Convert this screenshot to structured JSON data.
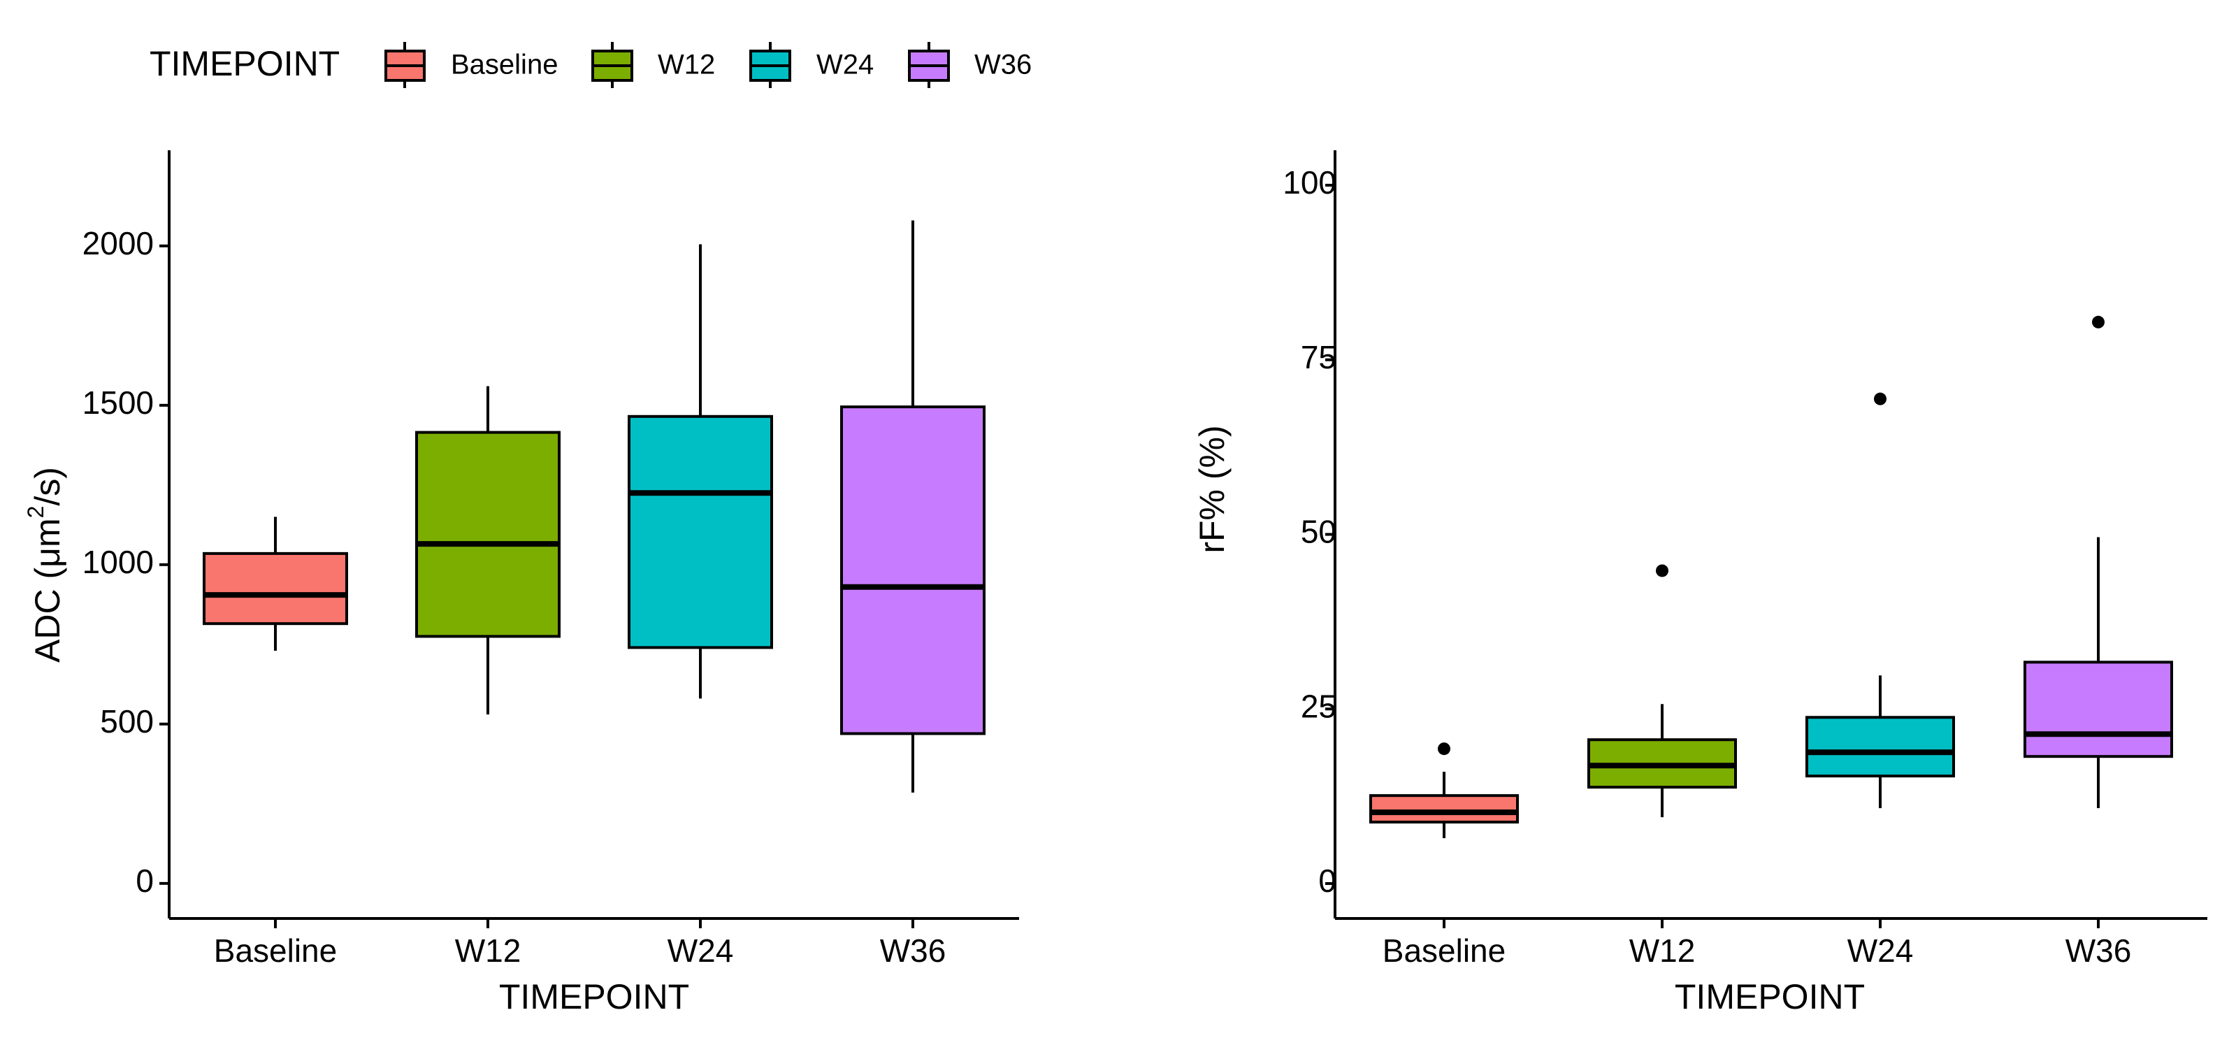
{
  "legend": {
    "title": "TIMEPOINT",
    "entries": [
      "Baseline",
      "W12",
      "W24",
      "W36"
    ]
  },
  "colors": {
    "Baseline": "#F8766D",
    "W12": "#7CAE00",
    "W24": "#00BFC4",
    "W36": "#C77CFF",
    "line": "#000000"
  },
  "chart_data": [
    {
      "type": "box",
      "title": "",
      "xlabel": "TIMEPOINT",
      "ylabel_main": "ADC (μm",
      "ylabel_sup": "2",
      "ylabel_tail": "/s)",
      "ylim": [
        -110,
        2300
      ],
      "yticks": [
        0,
        500,
        1000,
        1500,
        2000
      ],
      "ytick_labels": [
        "0",
        "500",
        "1000",
        "1500",
        "2000"
      ],
      "categories": [
        "Baseline",
        "W12",
        "W24",
        "W36"
      ],
      "boxes": [
        {
          "category": "Baseline",
          "lower_whisker": 730,
          "q1": 815,
          "median": 905,
          "q3": 1035,
          "upper_whisker": 1150,
          "outliers": []
        },
        {
          "category": "W12",
          "lower_whisker": 530,
          "q1": 775,
          "median": 1065,
          "q3": 1415,
          "upper_whisker": 1560,
          "outliers": []
        },
        {
          "category": "W24",
          "lower_whisker": 580,
          "q1": 740,
          "median": 1225,
          "q3": 1465,
          "upper_whisker": 2005,
          "outliers": []
        },
        {
          "category": "W36",
          "lower_whisker": 285,
          "q1": 470,
          "median": 930,
          "q3": 1495,
          "upper_whisker": 2080,
          "outliers": []
        }
      ]
    },
    {
      "type": "box",
      "title": "",
      "xlabel": "TIMEPOINT",
      "ylabel": "rF% (%)",
      "ylim": [
        -5,
        105
      ],
      "yticks": [
        0,
        25,
        50,
        75,
        100
      ],
      "ytick_labels": [
        "0",
        "25",
        "50",
        "75",
        "100"
      ],
      "categories": [
        "Baseline",
        "W12",
        "W24",
        "W36"
      ],
      "boxes": [
        {
          "category": "Baseline",
          "lower_whisker": 6.5,
          "q1": 8.8,
          "median": 10.2,
          "q3": 12.6,
          "upper_whisker": 16,
          "outliers": [
            19.3
          ]
        },
        {
          "category": "W12",
          "lower_whisker": 9.5,
          "q1": 13.8,
          "median": 16.9,
          "q3": 20.6,
          "upper_whisker": 25.7,
          "outliers": [
            44.8
          ]
        },
        {
          "category": "W24",
          "lower_whisker": 10.8,
          "q1": 15.4,
          "median": 18.8,
          "q3": 23.8,
          "upper_whisker": 29.8,
          "outliers": [
            69.4
          ]
        },
        {
          "category": "W36",
          "lower_whisker": 10.8,
          "q1": 18.2,
          "median": 21.4,
          "q3": 31.7,
          "upper_whisker": 49.6,
          "outliers": [
            80.4
          ]
        }
      ]
    }
  ]
}
